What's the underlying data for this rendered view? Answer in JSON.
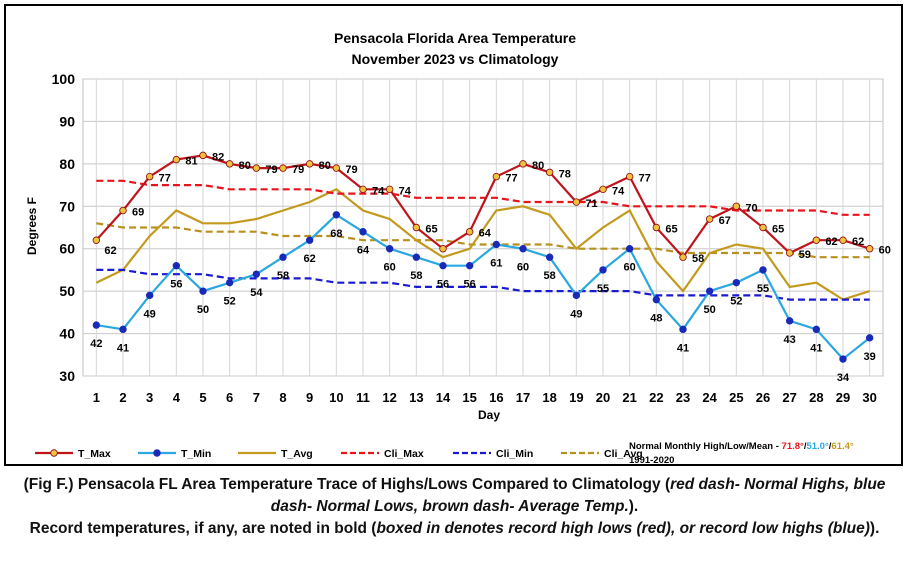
{
  "chart_data": {
    "type": "line",
    "title": "Pensacola Florida Area Temperature",
    "subtitle": "November 2023 vs Climatology",
    "xlabel": "Day",
    "ylabel": "Degrees F",
    "ylim": [
      30,
      100
    ],
    "yticks": [
      30,
      40,
      50,
      60,
      70,
      80,
      90,
      100
    ],
    "grid": true,
    "legend_position": "bottom",
    "x": [
      1,
      2,
      3,
      4,
      5,
      6,
      7,
      8,
      9,
      10,
      11,
      12,
      13,
      14,
      15,
      16,
      17,
      18,
      19,
      20,
      21,
      22,
      23,
      24,
      25,
      26,
      27,
      28,
      29,
      30
    ],
    "series": [
      {
        "name": "T_Max",
        "color": "#c0141c",
        "marker_fill": "#f0c040",
        "style": "solid-marker",
        "values": [
          62,
          69,
          77,
          81,
          82,
          80,
          79,
          79,
          80,
          79,
          74,
          74,
          65,
          60,
          64,
          77,
          80,
          78,
          71,
          74,
          77,
          65,
          58,
          67,
          70,
          65,
          59,
          62,
          62,
          60
        ],
        "labels": [
          "62",
          "69",
          "77",
          "81",
          "82",
          "80",
          "79",
          "79",
          "80",
          "79",
          "74",
          "74",
          "65",
          "",
          "64",
          "77",
          "80",
          "78",
          "71",
          "74",
          "77",
          "65",
          "58",
          "67",
          "70",
          "65",
          "59",
          "62",
          "62",
          "60"
        ]
      },
      {
        "name": "T_Min",
        "color": "#2aa8e0",
        "marker_fill": "#1a2ab8",
        "style": "solid-marker",
        "values": [
          42,
          41,
          49,
          56,
          50,
          52,
          54,
          58,
          62,
          68,
          64,
          60,
          58,
          56,
          56,
          61,
          60,
          58,
          49,
          55,
          60,
          48,
          41,
          50,
          52,
          55,
          43,
          41,
          34,
          39
        ],
        "labels": [
          "42",
          "41",
          "49",
          "56",
          "50",
          "52",
          "54",
          "58",
          "62",
          "68",
          "64",
          "60",
          "58",
          "56",
          "56",
          "61",
          "60",
          "58",
          "49",
          "55",
          "60",
          "48",
          "41",
          "50",
          "52",
          "55",
          "43",
          "41",
          "34",
          "39"
        ]
      },
      {
        "name": "T_Avg",
        "color": "#c49a1e",
        "style": "solid",
        "values": [
          52,
          55,
          63,
          69,
          66,
          66,
          67,
          69,
          71,
          74,
          69,
          67,
          62,
          58,
          60,
          69,
          70,
          68,
          60,
          65,
          69,
          57,
          50,
          59,
          61,
          60,
          51,
          52,
          48,
          50
        ]
      },
      {
        "name": "Cli_Max",
        "color": "#e8141c",
        "style": "dash",
        "values": [
          76,
          76,
          75,
          75,
          75,
          74,
          74,
          74,
          74,
          73,
          73,
          73,
          72,
          72,
          72,
          72,
          71,
          71,
          71,
          71,
          70,
          70,
          70,
          70,
          69,
          69,
          69,
          69,
          68,
          68
        ]
      },
      {
        "name": "Cli_Min",
        "color": "#1a1ad0",
        "style": "dash",
        "values": [
          55,
          55,
          54,
          54,
          54,
          53,
          53,
          53,
          53,
          52,
          52,
          52,
          51,
          51,
          51,
          51,
          50,
          50,
          50,
          50,
          50,
          49,
          49,
          49,
          49,
          49,
          48,
          48,
          48,
          48
        ]
      },
      {
        "name": "Cli_Avg",
        "color": "#b8901e",
        "style": "dash",
        "values": [
          66,
          65,
          65,
          65,
          64,
          64,
          64,
          63,
          63,
          63,
          62,
          62,
          62,
          62,
          61,
          61,
          61,
          61,
          60,
          60,
          60,
          60,
          59,
          59,
          59,
          59,
          59,
          58,
          58,
          58
        ]
      }
    ],
    "normals_note": {
      "prefix": "Normal Monthly High/Low/Mean - ",
      "high": "71.8°",
      "sep1": "/",
      "low": "51.0°",
      "sep2": "/",
      "mean": "61.4°",
      "period": "1991-2020",
      "high_color": "#e8141c",
      "low_color": "#2aa8e0",
      "mean_color": "#c49a1e"
    }
  },
  "caption": {
    "line1_prefix": "(Fig F.) Pensacola FL Area Temperature Trace of Highs/Lows Compared to Climatology (",
    "line1_italic": "red dash- Normal Highs, blue dash- Normal Lows, brown dash- Average Temp.",
    "line1_suffix": ").",
    "line2_prefix": "Record temperatures, if any, are noted in bold (",
    "line2_italic": "boxed in denotes record high lows (red), or record low highs (blue)",
    "line2_suffix": ")."
  }
}
